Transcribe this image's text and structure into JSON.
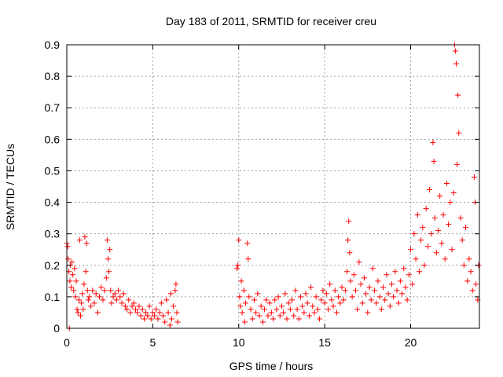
{
  "chart_data": {
    "type": "scatter",
    "title": "Day 183 of 2011, SRMTID for receiver creu",
    "xlabel": "GPS time / hours",
    "ylabel": "SRMTID / TECUs",
    "xlim": [
      0,
      24
    ],
    "ylim": [
      0,
      0.9
    ],
    "x_ticks": [
      0,
      5,
      10,
      15,
      20
    ],
    "y_ticks": [
      0,
      0.1,
      0.2,
      0.3,
      0.4,
      0.5,
      0.6,
      0.7,
      0.8,
      0.9
    ],
    "x_tick_labels": [
      "0",
      "5",
      "10",
      "15",
      "20"
    ],
    "y_tick_labels": [
      "0",
      "0.1",
      "0.2",
      "0.3",
      "0.4",
      "0.5",
      "0.6",
      "0.7",
      "0.8",
      "0.9"
    ],
    "grid": true,
    "marker": "+",
    "colors": {
      "points": "#ff0000",
      "grid": "#a0a0a0",
      "axis": "#000000"
    },
    "series": [
      {
        "name": "SRMTID",
        "points": [
          [
            0.0,
            0.27
          ],
          [
            0.05,
            0.26
          ],
          [
            0.08,
            0.22
          ],
          [
            0.12,
            0.18
          ],
          [
            0.15,
            0.0
          ],
          [
            0.18,
            0.15
          ],
          [
            0.2,
            0.2
          ],
          [
            0.25,
            0.13
          ],
          [
            0.3,
            0.21
          ],
          [
            0.35,
            0.17
          ],
          [
            0.4,
            0.12
          ],
          [
            0.45,
            0.19
          ],
          [
            0.5,
            0.1
          ],
          [
            0.55,
            0.15
          ],
          [
            0.6,
            0.06
          ],
          [
            0.65,
            0.05
          ],
          [
            0.7,
            0.09
          ],
          [
            0.75,
            0.28
          ],
          [
            0.8,
            0.04
          ],
          [
            0.85,
            0.08
          ],
          [
            0.9,
            0.11
          ],
          [
            0.95,
            0.06
          ],
          [
            1.0,
            0.14
          ],
          [
            1.05,
            0.29
          ],
          [
            1.1,
            0.18
          ],
          [
            1.15,
            0.27
          ],
          [
            1.2,
            0.12
          ],
          [
            1.25,
            0.09
          ],
          [
            1.3,
            0.1
          ],
          [
            1.4,
            0.07
          ],
          [
            1.5,
            0.12
          ],
          [
            1.6,
            0.08
          ],
          [
            1.7,
            0.11
          ],
          [
            1.8,
            0.05
          ],
          [
            1.9,
            0.1
          ],
          [
            2.0,
            0.13
          ],
          [
            2.1,
            0.09
          ],
          [
            2.2,
            0.12
          ],
          [
            2.3,
            0.16
          ],
          [
            2.35,
            0.28
          ],
          [
            2.4,
            0.22
          ],
          [
            2.45,
            0.18
          ],
          [
            2.5,
            0.25
          ],
          [
            2.55,
            0.12
          ],
          [
            2.6,
            0.08
          ],
          [
            2.7,
            0.1
          ],
          [
            2.8,
            0.11
          ],
          [
            2.9,
            0.09
          ],
          [
            3.0,
            0.12
          ],
          [
            3.1,
            0.1
          ],
          [
            3.2,
            0.08
          ],
          [
            3.3,
            0.11
          ],
          [
            3.4,
            0.07
          ],
          [
            3.5,
            0.06
          ],
          [
            3.6,
            0.09
          ],
          [
            3.7,
            0.05
          ],
          [
            3.8,
            0.07
          ],
          [
            3.9,
            0.08
          ],
          [
            4.0,
            0.06
          ],
          [
            4.1,
            0.05
          ],
          [
            4.2,
            0.07
          ],
          [
            4.3,
            0.04
          ],
          [
            4.4,
            0.06
          ],
          [
            4.5,
            0.03
          ],
          [
            4.6,
            0.05
          ],
          [
            4.7,
            0.04
          ],
          [
            4.8,
            0.07
          ],
          [
            4.9,
            0.03
          ],
          [
            5.0,
            0.05
          ],
          [
            5.1,
            0.04
          ],
          [
            5.2,
            0.06
          ],
          [
            5.3,
            0.03
          ],
          [
            5.4,
            0.05
          ],
          [
            5.5,
            0.08
          ],
          [
            5.6,
            0.04
          ],
          [
            5.7,
            0.02
          ],
          [
            5.8,
            0.09
          ],
          [
            5.9,
            0.05
          ],
          [
            6.0,
            0.01
          ],
          [
            6.05,
            0.11
          ],
          [
            6.1,
            0.03
          ],
          [
            6.2,
            0.07
          ],
          [
            6.3,
            0.12
          ],
          [
            6.35,
            0.14
          ],
          [
            6.4,
            0.05
          ],
          [
            6.45,
            0.02
          ],
          [
            9.9,
            0.19
          ],
          [
            9.95,
            0.2
          ],
          [
            10.0,
            0.28
          ],
          [
            10.05,
            0.1
          ],
          [
            10.1,
            0.07
          ],
          [
            10.15,
            0.15
          ],
          [
            10.2,
            0.05
          ],
          [
            10.3,
            0.12
          ],
          [
            10.35,
            0.02
          ],
          [
            10.4,
            0.08
          ],
          [
            10.5,
            0.27
          ],
          [
            10.55,
            0.22
          ],
          [
            10.6,
            0.1
          ],
          [
            10.7,
            0.06
          ],
          [
            10.8,
            0.03
          ],
          [
            10.9,
            0.09
          ],
          [
            11.0,
            0.05
          ],
          [
            11.1,
            0.11
          ],
          [
            11.2,
            0.04
          ],
          [
            11.3,
            0.07
          ],
          [
            11.4,
            0.02
          ],
          [
            11.5,
            0.06
          ],
          [
            11.6,
            0.09
          ],
          [
            11.7,
            0.04
          ],
          [
            11.8,
            0.08
          ],
          [
            11.9,
            0.05
          ],
          [
            12.0,
            0.03
          ],
          [
            12.1,
            0.09
          ],
          [
            12.2,
            0.06
          ],
          [
            12.3,
            0.1
          ],
          [
            12.4,
            0.04
          ],
          [
            12.5,
            0.07
          ],
          [
            12.6,
            0.05
          ],
          [
            12.7,
            0.11
          ],
          [
            12.8,
            0.03
          ],
          [
            12.9,
            0.08
          ],
          [
            13.0,
            0.06
          ],
          [
            13.1,
            0.09
          ],
          [
            13.2,
            0.04
          ],
          [
            13.3,
            0.12
          ],
          [
            13.4,
            0.06
          ],
          [
            13.5,
            0.03
          ],
          [
            13.6,
            0.1
          ],
          [
            13.7,
            0.07
          ],
          [
            13.8,
            0.05
          ],
          [
            13.9,
            0.11
          ],
          [
            14.0,
            0.08
          ],
          [
            14.1,
            0.04
          ],
          [
            14.2,
            0.13
          ],
          [
            14.3,
            0.07
          ],
          [
            14.4,
            0.05
          ],
          [
            14.5,
            0.1
          ],
          [
            14.6,
            0.06
          ],
          [
            14.7,
            0.03
          ],
          [
            14.8,
            0.09
          ],
          [
            14.9,
            0.12
          ],
          [
            15.0,
            0.08
          ],
          [
            15.1,
            0.11
          ],
          [
            15.2,
            0.06
          ],
          [
            15.3,
            0.14
          ],
          [
            15.4,
            0.09
          ],
          [
            15.5,
            0.07
          ],
          [
            15.6,
            0.12
          ],
          [
            15.7,
            0.05
          ],
          [
            15.8,
            0.1
          ],
          [
            15.9,
            0.08
          ],
          [
            16.0,
            0.13
          ],
          [
            16.1,
            0.09
          ],
          [
            16.2,
            0.12
          ],
          [
            16.3,
            0.18
          ],
          [
            16.35,
            0.28
          ],
          [
            16.4,
            0.34
          ],
          [
            16.45,
            0.24
          ],
          [
            16.5,
            0.15
          ],
          [
            16.6,
            0.1
          ],
          [
            16.7,
            0.17
          ],
          [
            16.8,
            0.12
          ],
          [
            16.9,
            0.06
          ],
          [
            17.0,
            0.21
          ],
          [
            17.1,
            0.14
          ],
          [
            17.2,
            0.08
          ],
          [
            17.3,
            0.16
          ],
          [
            17.4,
            0.11
          ],
          [
            17.5,
            0.05
          ],
          [
            17.6,
            0.13
          ],
          [
            17.7,
            0.09
          ],
          [
            17.8,
            0.19
          ],
          [
            17.9,
            0.12
          ],
          [
            18.0,
            0.08
          ],
          [
            18.1,
            0.15
          ],
          [
            18.2,
            0.1
          ],
          [
            18.3,
            0.06
          ],
          [
            18.4,
            0.13
          ],
          [
            18.5,
            0.09
          ],
          [
            18.6,
            0.17
          ],
          [
            18.7,
            0.11
          ],
          [
            18.8,
            0.07
          ],
          [
            18.9,
            0.14
          ],
          [
            19.0,
            0.1
          ],
          [
            19.1,
            0.18
          ],
          [
            19.2,
            0.12
          ],
          [
            19.3,
            0.08
          ],
          [
            19.4,
            0.15
          ],
          [
            19.5,
            0.11
          ],
          [
            19.6,
            0.19
          ],
          [
            19.7,
            0.13
          ],
          [
            19.8,
            0.09
          ],
          [
            19.9,
            0.17
          ],
          [
            20.0,
            0.25
          ],
          [
            20.1,
            0.14
          ],
          [
            20.2,
            0.3
          ],
          [
            20.3,
            0.22
          ],
          [
            20.4,
            0.36
          ],
          [
            20.5,
            0.18
          ],
          [
            20.6,
            0.28
          ],
          [
            20.7,
            0.32
          ],
          [
            20.8,
            0.2
          ],
          [
            20.9,
            0.38
          ],
          [
            21.0,
            0.26
          ],
          [
            21.1,
            0.44
          ],
          [
            21.2,
            0.3
          ],
          [
            21.3,
            0.59
          ],
          [
            21.35,
            0.53
          ],
          [
            21.4,
            0.35
          ],
          [
            21.5,
            0.24
          ],
          [
            21.6,
            0.31
          ],
          [
            21.7,
            0.42
          ],
          [
            21.8,
            0.27
          ],
          [
            21.9,
            0.36
          ],
          [
            22.0,
            0.22
          ],
          [
            22.1,
            0.46
          ],
          [
            22.2,
            0.33
          ],
          [
            22.3,
            0.4
          ],
          [
            22.4,
            0.25
          ],
          [
            22.5,
            0.43
          ],
          [
            22.55,
            0.9
          ],
          [
            22.6,
            0.88
          ],
          [
            22.65,
            0.84
          ],
          [
            22.7,
            0.52
          ],
          [
            22.75,
            0.74
          ],
          [
            22.8,
            0.62
          ],
          [
            22.9,
            0.35
          ],
          [
            23.0,
            0.28
          ],
          [
            23.1,
            0.2
          ],
          [
            23.2,
            0.32
          ],
          [
            23.3,
            0.15
          ],
          [
            23.4,
            0.22
          ],
          [
            23.5,
            0.18
          ],
          [
            23.6,
            0.12
          ],
          [
            23.7,
            0.48
          ],
          [
            23.75,
            0.4
          ],
          [
            23.8,
            0.14
          ],
          [
            23.9,
            0.09
          ],
          [
            23.95,
            0.2
          ]
        ]
      }
    ]
  }
}
